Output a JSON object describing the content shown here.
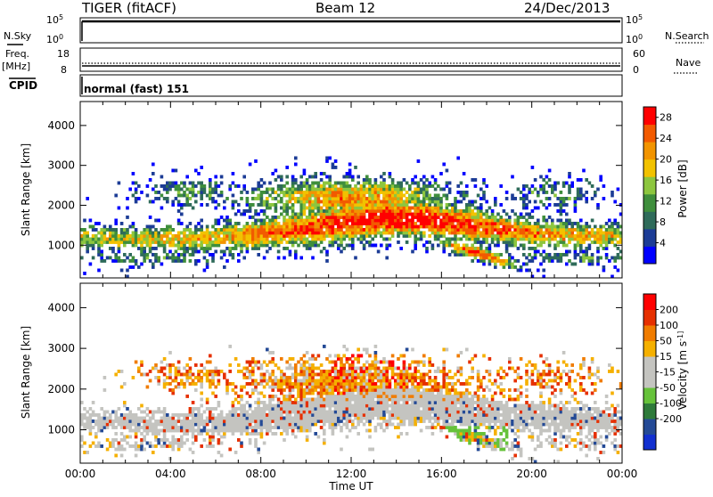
{
  "header": {
    "title": "TIGER (fitACF)",
    "beam": "Beam 12",
    "date": "24/Dec/2013"
  },
  "status": {
    "nsky_label": "N.Sky",
    "nsearch_label": "N.Search",
    "left_top": "10^5",
    "left_bottom": "10^0",
    "right_top": "10^5",
    "right_bottom": "10^0",
    "freq_label_1": "Freq.",
    "freq_label_2": "[MHz]",
    "freq_top": "18",
    "freq_bottom": "8",
    "nave_label": "Nave",
    "nave_top": "60",
    "nave_bottom": "0",
    "cpid_label": "CPID",
    "cpid_value": "normal (fast) 151"
  },
  "colors": {
    "power": [
      "#0000ff",
      "#1c3c96",
      "#2f6b5a",
      "#3f8e3c",
      "#8dc63f",
      "#f2c200",
      "#f29400",
      "#f25a00",
      "#ff0000"
    ],
    "velocity": [
      "#1230d0",
      "#244a96",
      "#2e7a3a",
      "#66c23a",
      "#c4c4c0",
      "#c4c4c0",
      "#f5b000",
      "#f07c00",
      "#e63000",
      "#ff0000"
    ]
  },
  "chart_data": [
    {
      "type": "heatmap",
      "title": "Power",
      "ylabel": "Slant Range [km]",
      "xlabel": "Time UT",
      "x_ticks": [
        "00:00",
        "04:00",
        "08:00",
        "12:00",
        "16:00",
        "20:00",
        "00:00"
      ],
      "y_ticks": [
        1000,
        2000,
        3000,
        4000
      ],
      "ylim": [
        180,
        4600
      ],
      "xlim_hours": [
        0,
        24
      ],
      "colorbar": {
        "label": "Power [dB]",
        "ticks": [
          4,
          8,
          12,
          16,
          20,
          24,
          28
        ],
        "range": [
          0,
          30
        ]
      }
    },
    {
      "type": "heatmap",
      "title": "Velocity",
      "ylabel": "Slant Range [km]",
      "xlabel": "Time UT",
      "x_ticks": [
        "00:00",
        "04:00",
        "08:00",
        "12:00",
        "16:00",
        "20:00",
        "00:00"
      ],
      "y_ticks": [
        1000,
        2000,
        3000,
        4000
      ],
      "ylim": [
        180,
        4600
      ],
      "xlim_hours": [
        0,
        24
      ],
      "colorbar": {
        "label": "Velocity [m s^-1]",
        "ticks": [
          200,
          100,
          50,
          15,
          -15,
          -50,
          -100,
          -200
        ],
        "range": [
          -250,
          250
        ]
      }
    }
  ]
}
